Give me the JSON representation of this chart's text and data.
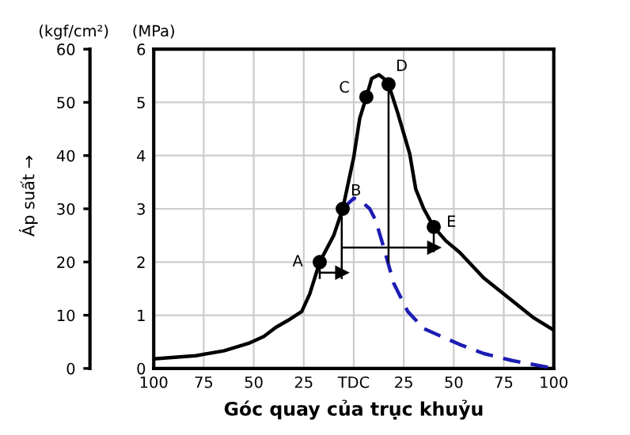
{
  "chart_data": {
    "type": "line",
    "xlabel": "Góc quay của trục khuỷu",
    "ylabel": "(MPa)",
    "y2label": "(kgf/cm²)",
    "xlim": [
      -100,
      100
    ],
    "xticks": [
      {
        "value": -100,
        "label": "100"
      },
      {
        "value": -75,
        "label": "75"
      },
      {
        "value": -50,
        "label": "50"
      },
      {
        "value": -25,
        "label": "25"
      },
      {
        "value": 0,
        "label": "TDC"
      },
      {
        "value": 25,
        "label": "25"
      },
      {
        "value": 50,
        "label": "50"
      },
      {
        "value": 75,
        "label": "75"
      },
      {
        "value": 100,
        "label": "100"
      }
    ],
    "ylim": [
      0,
      6
    ],
    "yticks": [
      0,
      1,
      2,
      3,
      4,
      5,
      6
    ],
    "y2lim": [
      0,
      60
    ],
    "y2ticks": [
      0,
      10,
      20,
      30,
      40,
      50,
      60
    ],
    "grid": true,
    "line_style": "solid",
    "series": [
      {
        "color": "#000000",
        "x": [
          -100,
          -79,
          -65,
          -52,
          -45,
          -39,
          -33,
          -26,
          -22,
          -17,
          -10,
          -5.5,
          0,
          3,
          6.3,
          9,
          12.6,
          15,
          17.4,
          22,
          28,
          31,
          35,
          40,
          46,
          53,
          65,
          79,
          90,
          100
        ],
        "values": [
          0.18,
          0.24,
          0.33,
          0.48,
          0.6,
          0.77,
          0.9,
          1.07,
          1.4,
          2.0,
          2.5,
          3.0,
          3.97,
          4.7,
          5.1,
          5.45,
          5.52,
          5.45,
          5.34,
          4.8,
          4.03,
          3.37,
          3.0,
          2.66,
          2.4,
          2.18,
          1.7,
          1.28,
          0.95,
          0.72
        ]
      },
      {
        "color": "#1c1cb4",
        "line_style": "dashed",
        "x": [
          -5.5,
          0,
          2,
          5,
          8,
          11,
          15,
          20,
          27,
          35,
          53,
          65,
          79,
          100
        ],
        "values": [
          3.0,
          3.2,
          3.18,
          3.1,
          3.0,
          2.78,
          2.27,
          1.6,
          1.07,
          0.75,
          0.45,
          0.28,
          0.15,
          0.0
        ]
      },
      {
        "type": "scatter",
        "color": "#000000",
        "x": [
          -17,
          -5.5,
          6.3,
          17.4,
          40
        ],
        "values": [
          2.0,
          3.0,
          5.1,
          5.34,
          2.66
        ]
      },
      {
        "type": "line",
        "color": "#000000",
        "marker": "triangle",
        "x": [
          -17,
          -6
        ],
        "values": [
          1.8,
          1.8
        ]
      },
      {
        "type": "line",
        "color": "#000000",
        "x": [
          -17,
          -17
        ],
        "values": [
          1.7,
          1.9
        ]
      },
      {
        "type": "line",
        "color": "#000000",
        "x": [
          -6,
          -6
        ],
        "values": [
          1.7,
          3.0
        ]
      },
      {
        "type": "line",
        "color": "#000000",
        "marker": "triangle",
        "x": [
          -5,
          40
        ],
        "values": [
          2.27,
          2.27
        ]
      },
      {
        "type": "line",
        "color": "#000000",
        "x": [
          40,
          40
        ],
        "values": [
          2.2,
          2.66
        ]
      },
      {
        "type": "line",
        "color": "#000000",
        "x": [
          17.4,
          17.4
        ],
        "values": [
          2.0,
          5.34
        ]
      }
    ],
    "annotations": [
      {
        "text": "A",
        "x": -17,
        "y": 2.0
      },
      {
        "text": "B",
        "x": -5.5,
        "y": 3.0
      },
      {
        "text": "C",
        "x": 6.3,
        "y": 5.1
      },
      {
        "text": "D",
        "x": 17.4,
        "y": 5.34
      },
      {
        "text": "E",
        "x": 40,
        "y": 2.66
      },
      "Áp suất →"
    ]
  }
}
